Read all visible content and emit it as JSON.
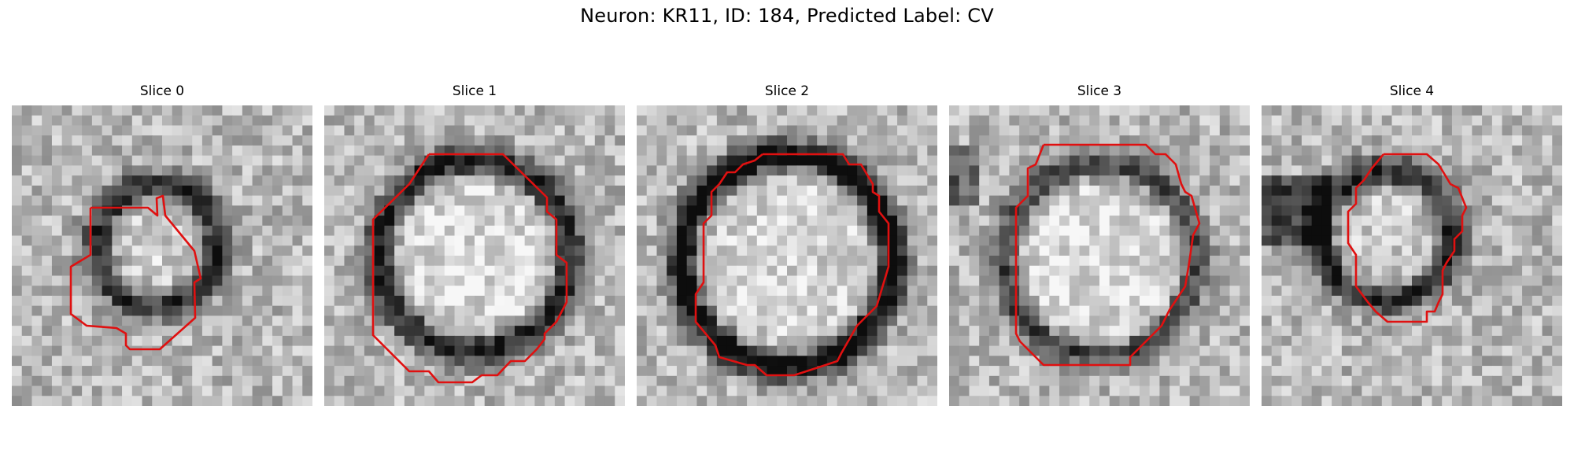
{
  "figure": {
    "title": "Neuron: KR11, ID: 184, Predicted Label: CV"
  },
  "panels": [
    {
      "title": "Slice 0"
    },
    {
      "title": "Slice 1"
    },
    {
      "title": "Slice 2"
    },
    {
      "title": "Slice 3"
    },
    {
      "title": "Slice 4"
    }
  ],
  "colors": {
    "outline": "#e01010",
    "background": "#ffffff"
  }
}
